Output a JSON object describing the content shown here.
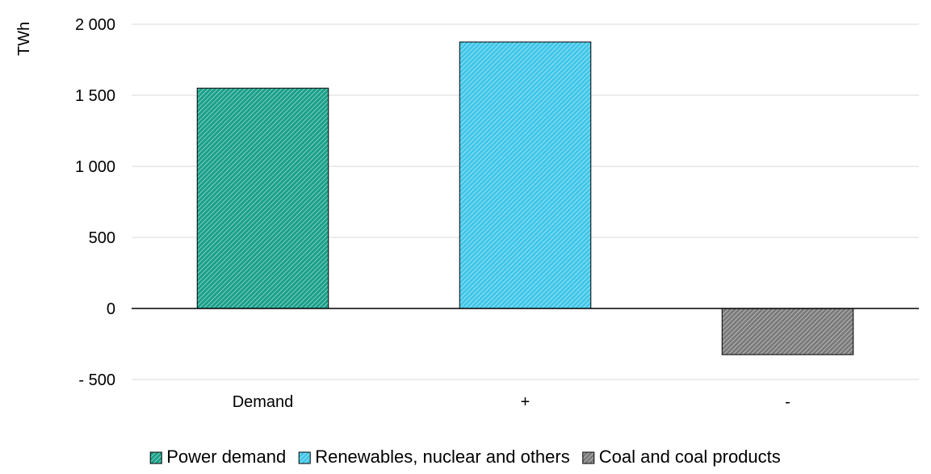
{
  "chart_data": {
    "type": "bar",
    "ylabel": "TWh",
    "ylim": [
      -500,
      2000
    ],
    "yticks": [
      -500,
      0,
      500,
      1000,
      1500,
      2000
    ],
    "ytick_labels": [
      "- 500",
      "0",
      "500",
      "1 000",
      "1 500",
      "2 000"
    ],
    "categories": [
      "Demand",
      "+",
      "-"
    ],
    "series": [
      {
        "name": "Power demand",
        "category": "Demand",
        "value": 1550,
        "color": "#1aa08a"
      },
      {
        "name": "Renewables, nuclear and others",
        "category": "+",
        "value": 1875,
        "color": "#3fc6e8"
      },
      {
        "name": "Coal and coal products",
        "category": "-",
        "value": -325,
        "color": "#7a7a7a"
      }
    ],
    "grid": true,
    "legend_position": "bottom"
  }
}
